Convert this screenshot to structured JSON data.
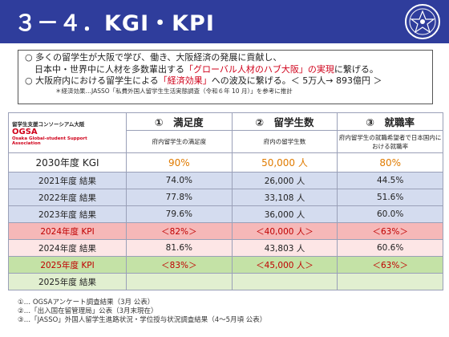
{
  "header": {
    "title": "３－４．KGI・KPI"
  },
  "intro": {
    "line1_bullet": "○",
    "line1_a": "多くの留学生が大阪で学び、働き、大阪経済の発展に貢献し、",
    "line1_b_pre": "日本中・世界中に人材を多数輩出する",
    "line1_b_red": "「グローバル人材のハブ大阪」の実現",
    "line1_b_post": "に繋げる。",
    "line2_bullet": "○",
    "line2_pre": "大阪府内における留学生による",
    "line2_red": "「経済効果」",
    "line2_post": "への波及に繋げる。＜ 5万人→ 893億円 ＞",
    "note": "＊経済効果…JASSO「私費外国人留学生生活実態調査（令和６年 10 月）」を参考に推計"
  },
  "table": {
    "ogsa_top": "留学生支援コンソーシアム大阪",
    "ogsa_name": "OGSA",
    "ogsa_en1": "Osaka Global-student Support",
    "ogsa_en2": "Association",
    "headers": [
      "①　満足度",
      "②　留学生数",
      "③　就職率"
    ],
    "subheaders": [
      "府内留学生の満足度",
      "府内の留学生数",
      "府内留学生の就職希望者で日本国内における就職率"
    ],
    "rows": [
      {
        "label": "2030年度 KGI",
        "values": [
          "90%",
          "50,000 人",
          "80%"
        ]
      },
      {
        "label": "2021年度 結果",
        "values": [
          "74.0%",
          "26,000 人",
          "44.5%"
        ]
      },
      {
        "label": "2022年度 結果",
        "values": [
          "77.8%",
          "33,108 人",
          "51.6%"
        ]
      },
      {
        "label": "2023年度 結果",
        "values": [
          "79.6%",
          "36,000 人",
          "60.0%"
        ]
      },
      {
        "label": "2024年度 KPI",
        "values": [
          "＜82%＞",
          "＜40,000 人＞",
          "＜63%＞"
        ]
      },
      {
        "label": "2024年度 結果",
        "values": [
          "81.6%",
          "43,803 人",
          "60.6%"
        ]
      },
      {
        "label": "2025年度 KPI",
        "values": [
          "＜83%＞",
          "＜45,000 人＞",
          "＜63%＞"
        ]
      },
      {
        "label": "2025年度 結果",
        "values": [
          "",
          "",
          ""
        ]
      }
    ]
  },
  "footer": [
    "①… OGSAアンケート調査結果（3月 公表）",
    "②…「出入国在留管理局」公表（3月末現在）",
    "③…「JASSO」外国人留学生進路状況・学位授与状況調査結果（4～5月頃 公表）"
  ],
  "colors": {
    "header_bg": "#2f3d9c",
    "accent_red": "#d0021b",
    "kgi_orange": "#e07b00"
  }
}
